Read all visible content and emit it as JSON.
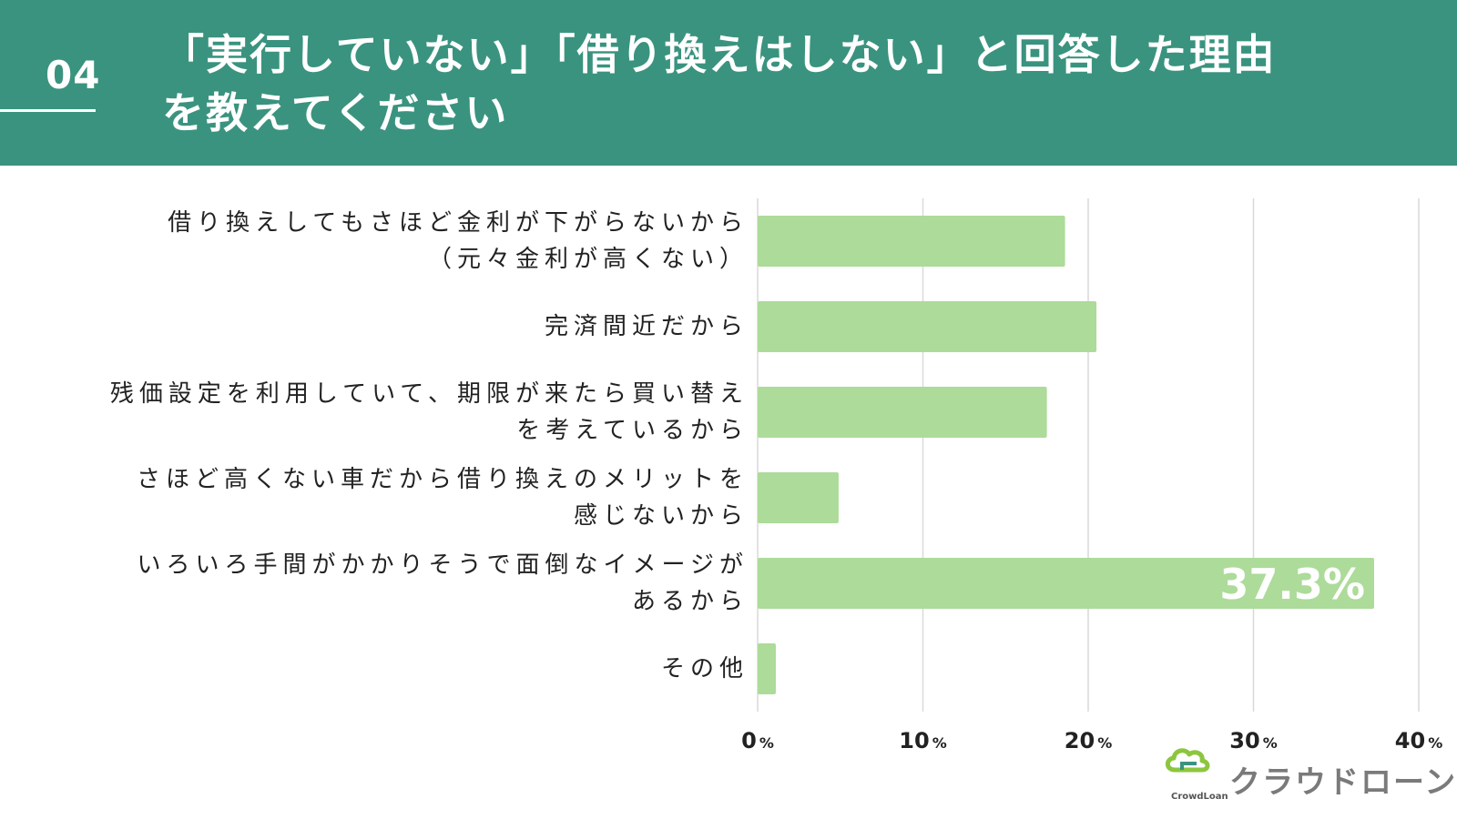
{
  "header": {
    "number": "04",
    "title_line1": "「実行していない」「借り換えはしない」と回答した理由",
    "title_line2": "を教えてください"
  },
  "colors": {
    "header_bg": "#3a937f",
    "bar": "#addb9a",
    "grid": "#d9d9d9",
    "value_label": "#ffffff",
    "logo_green": "#8cc63f",
    "logo_text": "#7a7a7a"
  },
  "chart_data": {
    "type": "bar",
    "orientation": "horizontal",
    "categories": [
      [
        "借り換えしてもさほど金利が下がらないから",
        "（元々金利が高くない）"
      ],
      [
        "完済間近だから"
      ],
      [
        "残価設定を利用していて、期限が来たら買い替え",
        "を考えているから"
      ],
      [
        "さほど高くない車だから借り換えのメリットを",
        "感じないから"
      ],
      [
        "いろいろ手間がかかりそうで面倒なイメージが",
        "あるから"
      ],
      [
        "その他"
      ]
    ],
    "values": [
      18.6,
      20.5,
      17.5,
      4.9,
      37.3,
      1.1
    ],
    "xlim": [
      0,
      40
    ],
    "ticks": [
      0,
      10,
      20,
      30,
      40
    ],
    "tick_unit": "%",
    "data_labels": [
      "",
      "",
      "",
      "",
      "37.3%",
      ""
    ],
    "grid": true
  },
  "logo": {
    "text": "クラウドローン",
    "sub": "CrowdLoan"
  }
}
